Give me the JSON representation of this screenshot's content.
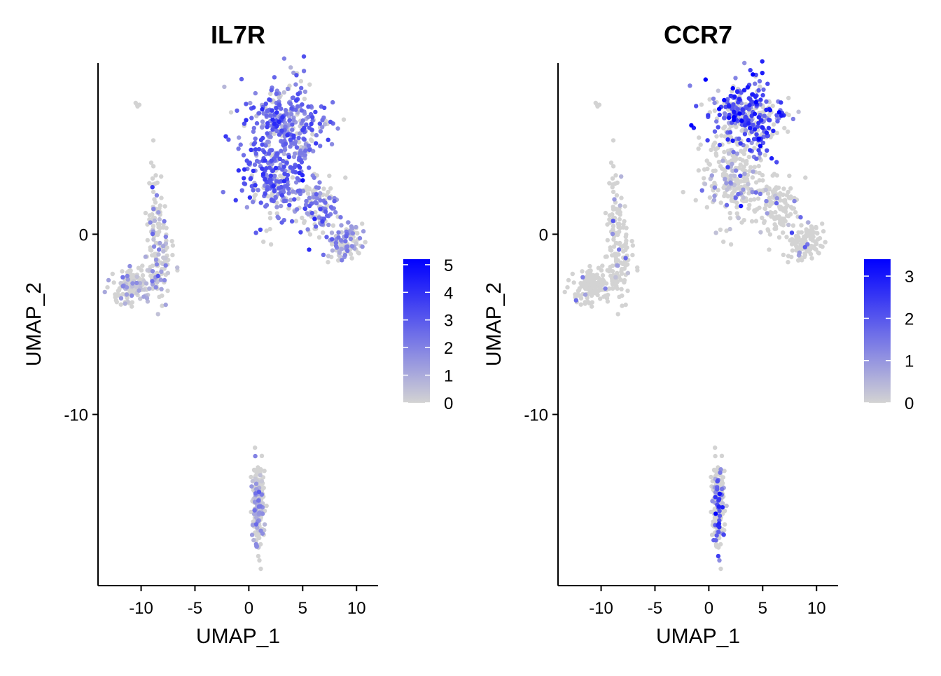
{
  "colors": {
    "low": "#D3D3D3",
    "high": "#0000FF",
    "axis": "#000000",
    "background": "#FFFFFF"
  },
  "chart_data": [
    {
      "type": "scatter",
      "title": "IL7R",
      "xlabel": "UMAP_1",
      "ylabel": "UMAP_2",
      "xlim": [
        -14,
        12
      ],
      "ylim": [
        -19.5,
        9.5
      ],
      "x_ticks": [
        -10,
        -5,
        0,
        5,
        10
      ],
      "y_ticks": [
        0,
        -10
      ],
      "x_tick_labels": [
        "-10",
        "-5",
        "0",
        "5",
        "10"
      ],
      "y_tick_labels": [
        "0",
        "-10"
      ],
      "grid": false,
      "legend": {
        "type": "colorbar",
        "placement": "right",
        "min": 0,
        "max": 5.2,
        "ticks": [
          0,
          1,
          2,
          3,
          4,
          5
        ],
        "tick_labels": [
          "0",
          "1",
          "2",
          "3",
          "4",
          "5"
        ],
        "colors": [
          "#D3D3D3",
          "#0000FF"
        ]
      },
      "expression_max": 5.2,
      "clusters": [
        {
          "cx": -11.0,
          "cy": -3.0,
          "sx": 1.2,
          "sy": 0.6,
          "n": 130,
          "mean_expr": 0.9,
          "p_expr": 0.35
        },
        {
          "cx": -8.4,
          "cy": -1.2,
          "sx": 0.8,
          "sy": 1.5,
          "n": 110,
          "mean_expr": 0.9,
          "p_expr": 0.35
        },
        {
          "cx": -8.8,
          "cy": 1.5,
          "sx": 0.4,
          "sy": 1.6,
          "n": 45,
          "mean_expr": 0.9,
          "p_expr": 0.3
        },
        {
          "cx": -10.4,
          "cy": 7.2,
          "sx": 0.1,
          "sy": 0.1,
          "n": 4,
          "mean_expr": 0.0,
          "p_expr": 0.0
        },
        {
          "cx": 3.5,
          "cy": 6.0,
          "sx": 2.2,
          "sy": 1.5,
          "n": 330,
          "mean_expr": 2.4,
          "p_expr": 0.82
        },
        {
          "cx": 2.5,
          "cy": 3.0,
          "sx": 1.8,
          "sy": 1.5,
          "n": 230,
          "mean_expr": 2.6,
          "p_expr": 0.78
        },
        {
          "cx": 6.2,
          "cy": 1.6,
          "sx": 1.2,
          "sy": 1.0,
          "n": 120,
          "mean_expr": 2.0,
          "p_expr": 0.6
        },
        {
          "cx": 8.7,
          "cy": -0.4,
          "sx": 1.0,
          "sy": 0.7,
          "n": 110,
          "mean_expr": 1.5,
          "p_expr": 0.45
        },
        {
          "cx": 0.9,
          "cy": -15.0,
          "sx": 0.35,
          "sy": 1.4,
          "n": 200,
          "mean_expr": 1.2,
          "p_expr": 0.35
        }
      ]
    },
    {
      "type": "scatter",
      "title": "CCR7",
      "xlabel": "UMAP_1",
      "ylabel": "UMAP_2",
      "xlim": [
        -14,
        12
      ],
      "ylim": [
        -19.5,
        9.5
      ],
      "x_ticks": [
        -10,
        -5,
        0,
        5,
        10
      ],
      "y_ticks": [
        0,
        -10
      ],
      "x_tick_labels": [
        "-10",
        "-5",
        "0",
        "5",
        "10"
      ],
      "y_tick_labels": [
        "0",
        "-10"
      ],
      "grid": false,
      "legend": {
        "type": "colorbar",
        "placement": "right",
        "min": 0,
        "max": 3.4,
        "ticks": [
          0,
          1,
          2,
          3
        ],
        "tick_labels": [
          "0",
          "1",
          "2",
          "3"
        ],
        "colors": [
          "#D3D3D3",
          "#0000FF"
        ]
      },
      "expression_max": 3.4,
      "clusters": [
        {
          "cx": -11.0,
          "cy": -3.0,
          "sx": 1.2,
          "sy": 0.6,
          "n": 130,
          "mean_expr": 0.8,
          "p_expr": 0.06
        },
        {
          "cx": -8.4,
          "cy": -1.2,
          "sx": 0.8,
          "sy": 1.5,
          "n": 110,
          "mean_expr": 0.9,
          "p_expr": 0.07
        },
        {
          "cx": -8.8,
          "cy": 1.5,
          "sx": 0.4,
          "sy": 1.6,
          "n": 45,
          "mean_expr": 0.9,
          "p_expr": 0.08
        },
        {
          "cx": -10.4,
          "cy": 7.2,
          "sx": 0.1,
          "sy": 0.1,
          "n": 4,
          "mean_expr": 0.0,
          "p_expr": 0.0
        },
        {
          "cx": 3.5,
          "cy": 6.5,
          "sx": 2.0,
          "sy": 1.2,
          "n": 330,
          "mean_expr": 2.0,
          "p_expr": 0.6
        },
        {
          "cx": 2.5,
          "cy": 3.0,
          "sx": 1.8,
          "sy": 1.5,
          "n": 230,
          "mean_expr": 1.0,
          "p_expr": 0.2
        },
        {
          "cx": 6.2,
          "cy": 1.6,
          "sx": 1.2,
          "sy": 1.0,
          "n": 120,
          "mean_expr": 0.8,
          "p_expr": 0.06
        },
        {
          "cx": 8.7,
          "cy": -0.4,
          "sx": 1.0,
          "sy": 0.7,
          "n": 110,
          "mean_expr": 0.8,
          "p_expr": 0.05
        },
        {
          "cx": 0.9,
          "cy": -15.0,
          "sx": 0.35,
          "sy": 1.4,
          "n": 200,
          "mean_expr": 1.5,
          "p_expr": 0.2
        }
      ]
    }
  ]
}
